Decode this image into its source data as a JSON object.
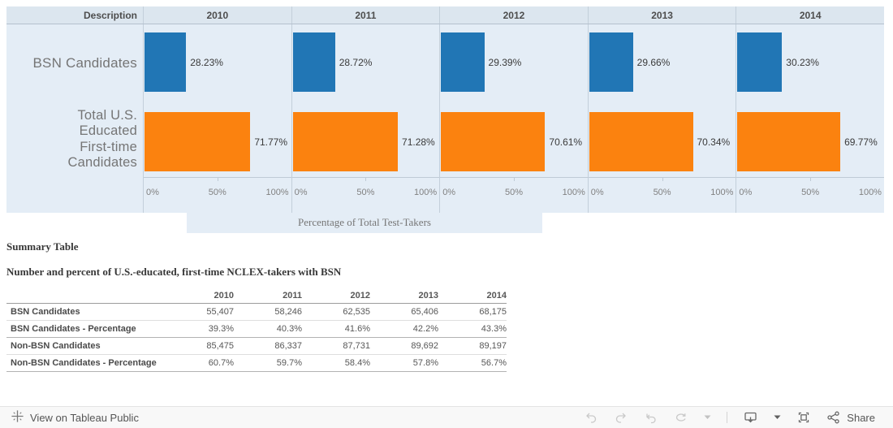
{
  "chart": {
    "description_header": "Description",
    "row2_label_lines": [
      "Total U.S.",
      "Educated",
      "First-time",
      "Candidates"
    ],
    "colors": {
      "bsn_bar": "#2176b5",
      "total_bar": "#fb820f",
      "chart_bg": "#e4edf6",
      "header_bg": "#dce6ef"
    }
  },
  "chart_data": [
    {
      "type": "bar",
      "orientation": "horizontal",
      "title": "",
      "categories": [
        "2010",
        "2011",
        "2012",
        "2013",
        "2014"
      ],
      "series": [
        {
          "name": "BSN Candidates",
          "color": "#2176b5",
          "values": [
            28.23,
            28.72,
            29.39,
            29.66,
            30.23
          ]
        },
        {
          "name": "Total U.S. Educated First-time Candidates",
          "color": "#fb820f",
          "values": [
            71.77,
            71.28,
            70.61,
            70.34,
            69.77
          ]
        }
      ],
      "value_label_format": "percent_2dp",
      "xlabel": "Percentage of Total Test-Takers",
      "x_ticks": [
        "0%",
        "50%",
        "100%"
      ],
      "xlim": [
        0,
        100
      ],
      "grid": false,
      "legend": "none"
    },
    {
      "type": "table",
      "title": "Summary Table",
      "subtitle": "Number and percent of U.S.-educated, first-time NCLEX-takers with BSN",
      "columns": [
        "",
        "2010",
        "2011",
        "2012",
        "2013",
        "2014"
      ],
      "rows": [
        [
          "BSN Candidates",
          "55,407",
          "58,246",
          "62,535",
          "65,406",
          "68,175"
        ],
        [
          "BSN Candidates - Percentage",
          "39.3%",
          "40.3%",
          "41.6%",
          "42.2%",
          "43.3%"
        ],
        [
          "Non-BSN Candidates",
          "85,475",
          "86,337",
          "87,731",
          "89,692",
          "89,197"
        ],
        [
          "Non-BSN Candidates - Percentage",
          "60.7%",
          "59.7%",
          "58.4%",
          "57.8%",
          "56.7%"
        ]
      ]
    }
  ],
  "toolbar": {
    "view_label": "View on Tableau Public",
    "share_label": "Share",
    "icons": [
      "tableau-logo-icon",
      "undo-icon",
      "redo-icon",
      "revert-icon",
      "refresh-icon",
      "chevron-down-icon",
      "download-icon",
      "chevron-down-icon",
      "fullscreen-icon",
      "share-icon"
    ]
  }
}
